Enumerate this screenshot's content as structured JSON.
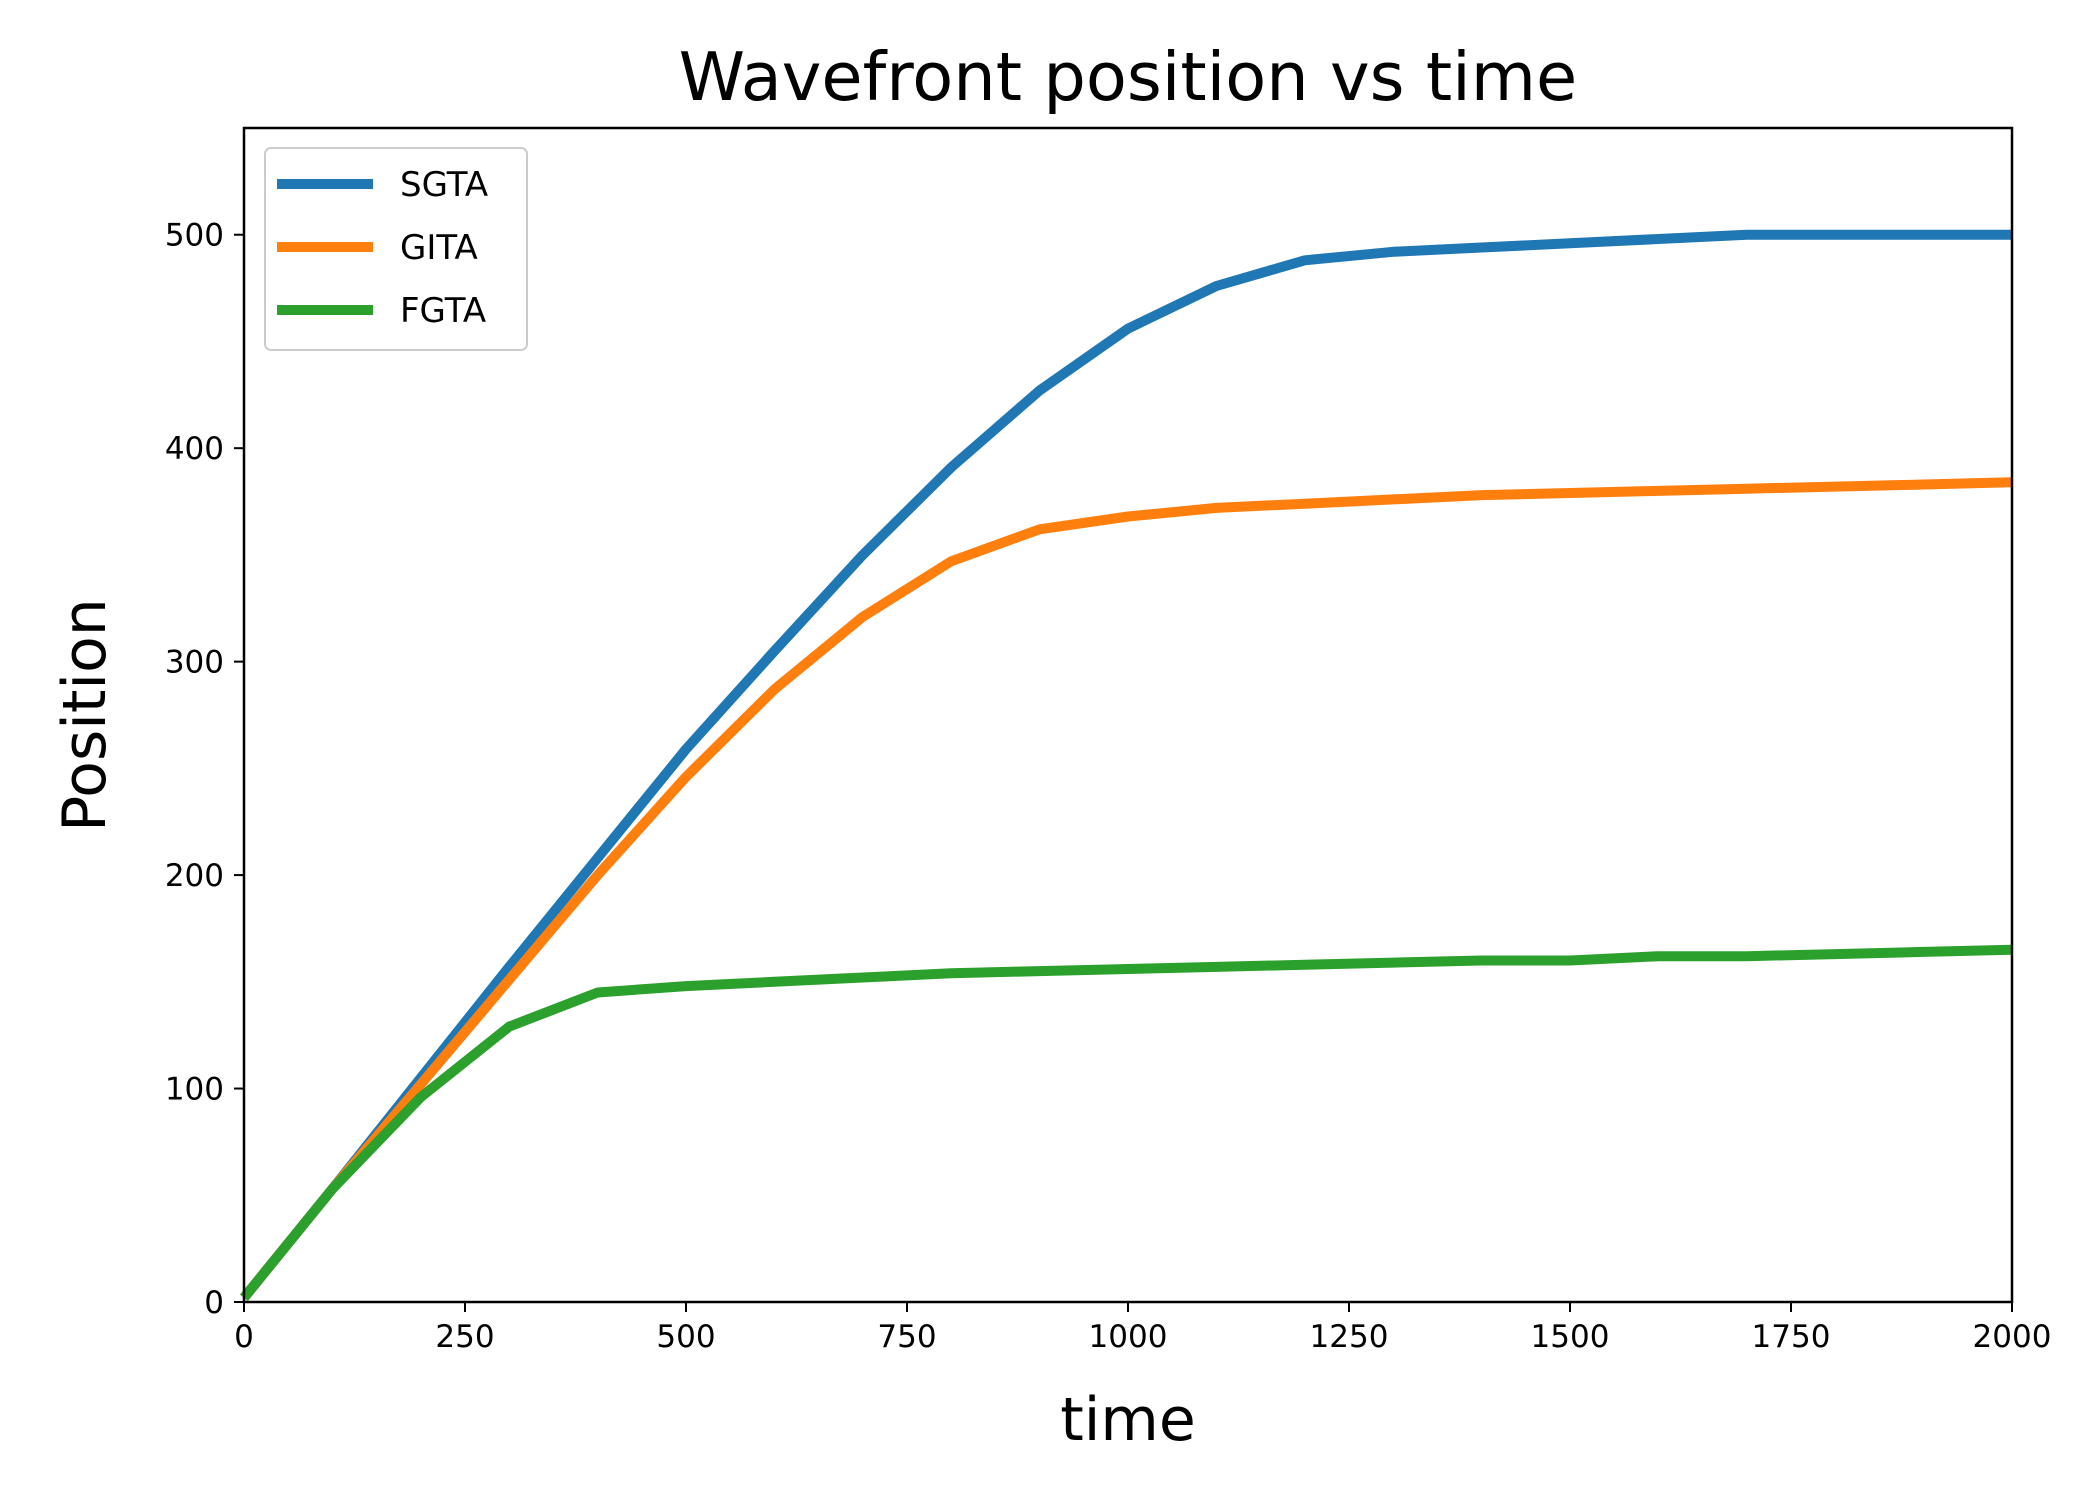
{
  "chart_data": {
    "type": "line",
    "title": "Wavefront position vs time",
    "xlabel": "time",
    "ylabel": "Position",
    "xlim": [
      0,
      2000
    ],
    "ylim": [
      0,
      550
    ],
    "xticks": [
      0,
      250,
      500,
      750,
      1000,
      1250,
      1500,
      1750,
      2000
    ],
    "yticks": [
      0,
      100,
      200,
      300,
      400,
      500
    ],
    "grid": false,
    "legend_position": "top-left",
    "series": [
      {
        "name": "SGTA",
        "color": "#1f77b4",
        "x": [
          0,
          100,
          200,
          300,
          400,
          500,
          600,
          700,
          800,
          900,
          1000,
          1100,
          1200,
          1300,
          1400,
          1500,
          1600,
          1700,
          1800,
          1900,
          2000
        ],
        "y": [
          2,
          53,
          105,
          157,
          208,
          259,
          305,
          350,
          391,
          427,
          456,
          476,
          488,
          492,
          494,
          496,
          498,
          500,
          500,
          500,
          500
        ]
      },
      {
        "name": "GITA",
        "color": "#ff7f0e",
        "x": [
          0,
          100,
          200,
          300,
          400,
          500,
          600,
          700,
          800,
          900,
          1000,
          1100,
          1200,
          1300,
          1400,
          1500,
          1600,
          1700,
          1800,
          1900,
          2000
        ],
        "y": [
          2,
          53,
          102,
          151,
          200,
          246,
          287,
          321,
          347,
          362,
          368,
          372,
          374,
          376,
          378,
          379,
          380,
          381,
          382,
          383,
          384
        ]
      },
      {
        "name": "FGTA",
        "color": "#2ca02c",
        "x": [
          0,
          100,
          200,
          300,
          400,
          500,
          600,
          700,
          800,
          900,
          1000,
          1100,
          1200,
          1300,
          1400,
          1500,
          1600,
          1700,
          1800,
          1900,
          2000
        ],
        "y": [
          2,
          53,
          96,
          129,
          145,
          148,
          150,
          152,
          154,
          155,
          156,
          157,
          158,
          159,
          160,
          160,
          162,
          162,
          163,
          164,
          165
        ]
      }
    ]
  }
}
